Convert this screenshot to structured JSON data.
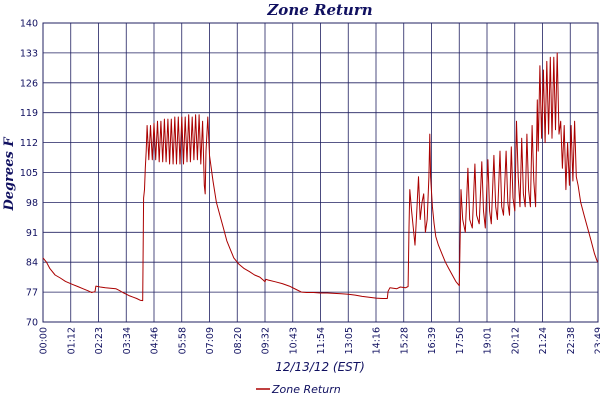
{
  "chart_data": {
    "type": "line",
    "title": "Zone Return",
    "xlabel": "12/13/12 (EST)",
    "ylabel": "Degrees F",
    "ylim": [
      70,
      140
    ],
    "yticks": [
      70,
      77,
      84,
      91,
      98,
      105,
      112,
      119,
      126,
      133,
      140
    ],
    "xticks": [
      "00:00",
      "01:12",
      "02:23",
      "03:34",
      "04:46",
      "05:58",
      "07:09",
      "08:20",
      "09:32",
      "10:43",
      "11:54",
      "13:05",
      "14:16",
      "15:28",
      "16:39",
      "17:50",
      "19:01",
      "20:12",
      "21:24",
      "22:38",
      "23:49"
    ],
    "grid": true,
    "legend_position": "bottom-center",
    "colors": {
      "series": "#aa0000",
      "grid": "#202060",
      "text": "#101060"
    },
    "series": [
      {
        "name": "Zone Return",
        "x_unit": "hours",
        "points": [
          [
            0.0,
            85.0
          ],
          [
            0.2,
            84.0
          ],
          [
            0.4,
            82.5
          ],
          [
            0.7,
            81.0
          ],
          [
            1.0,
            80.3
          ],
          [
            1.3,
            79.5
          ],
          [
            1.7,
            78.8
          ],
          [
            2.0,
            78.3
          ],
          [
            2.3,
            77.8
          ],
          [
            2.6,
            77.3
          ],
          [
            2.8,
            76.9
          ],
          [
            3.0,
            77.1
          ],
          [
            3.05,
            78.4
          ],
          [
            3.3,
            78.2
          ],
          [
            3.6,
            78.0
          ],
          [
            3.9,
            77.9
          ],
          [
            4.2,
            77.8
          ],
          [
            4.4,
            77.4
          ],
          [
            4.6,
            76.9
          ],
          [
            4.8,
            76.5
          ],
          [
            5.0,
            76.1
          ],
          [
            5.2,
            75.8
          ],
          [
            5.4,
            75.5
          ],
          [
            5.6,
            75.1
          ],
          [
            5.75,
            75.0
          ],
          [
            5.8,
            99.0
          ],
          [
            5.85,
            101.0
          ],
          [
            5.9,
            106.0
          ],
          [
            5.95,
            110.0
          ],
          [
            6.0,
            116.0
          ],
          [
            6.1,
            108.0
          ],
          [
            6.2,
            116.0
          ],
          [
            6.3,
            108.0
          ],
          [
            6.4,
            116.5
          ],
          [
            6.5,
            108.0
          ],
          [
            6.6,
            117.0
          ],
          [
            6.7,
            107.5
          ],
          [
            6.8,
            117.0
          ],
          [
            6.9,
            107.5
          ],
          [
            7.0,
            117.5
          ],
          [
            7.1,
            107.5
          ],
          [
            7.2,
            117.5
          ],
          [
            7.3,
            107.0
          ],
          [
            7.4,
            117.5
          ],
          [
            7.5,
            107.0
          ],
          [
            7.6,
            118.0
          ],
          [
            7.7,
            107.0
          ],
          [
            7.8,
            118.0
          ],
          [
            7.9,
            107.0
          ],
          [
            8.0,
            118.0
          ],
          [
            8.1,
            107.0
          ],
          [
            8.2,
            118.0
          ],
          [
            8.3,
            107.5
          ],
          [
            8.4,
            118.5
          ],
          [
            8.5,
            107.5
          ],
          [
            8.6,
            118.0
          ],
          [
            8.7,
            108.0
          ],
          [
            8.8,
            118.5
          ],
          [
            8.9,
            108.0
          ],
          [
            9.0,
            118.5
          ],
          [
            9.1,
            107.0
          ],
          [
            9.2,
            117.0
          ],
          [
            9.3,
            102.0
          ],
          [
            9.35,
            100.0
          ],
          [
            9.4,
            110.0
          ],
          [
            9.5,
            118.0
          ],
          [
            9.6,
            109.0
          ],
          [
            9.8,
            103.0
          ],
          [
            10.0,
            98.0
          ],
          [
            10.2,
            95.0
          ],
          [
            10.4,
            92.0
          ],
          [
            10.6,
            89.0
          ],
          [
            10.8,
            87.0
          ],
          [
            11.0,
            85.0
          ],
          [
            11.3,
            83.5
          ],
          [
            11.6,
            82.5
          ],
          [
            11.9,
            81.8
          ],
          [
            12.2,
            81.0
          ],
          [
            12.5,
            80.5
          ],
          [
            12.7,
            79.8
          ],
          [
            12.8,
            79.4
          ],
          [
            12.85,
            80.0
          ],
          [
            13.0,
            79.8
          ],
          [
            13.4,
            79.4
          ],
          [
            13.8,
            79.0
          ],
          [
            14.2,
            78.4
          ],
          [
            14.6,
            77.6
          ],
          [
            14.9,
            77.0
          ],
          [
            15.2,
            76.9
          ],
          [
            15.6,
            76.9
          ],
          [
            16.0,
            76.8
          ],
          [
            16.4,
            76.8
          ],
          [
            16.8,
            76.7
          ],
          [
            17.2,
            76.6
          ],
          [
            17.6,
            76.5
          ],
          [
            18.0,
            76.3
          ],
          [
            18.4,
            76.0
          ],
          [
            18.8,
            75.8
          ],
          [
            19.2,
            75.6
          ],
          [
            19.6,
            75.5
          ],
          [
            19.85,
            75.5
          ],
          [
            19.9,
            77.2
          ],
          [
            20.0,
            78.0
          ],
          [
            20.4,
            77.8
          ],
          [
            20.6,
            78.2
          ],
          [
            20.9,
            78.0
          ],
          [
            21.05,
            78.3
          ],
          [
            21.1,
            92.0
          ],
          [
            21.15,
            101.0
          ],
          [
            21.25,
            96.0
          ],
          [
            21.35,
            92.0
          ],
          [
            21.45,
            88.0
          ],
          [
            21.55,
            96.0
          ],
          [
            21.65,
            104.0
          ],
          [
            21.75,
            94.0
          ],
          [
            21.85,
            98.0
          ],
          [
            21.95,
            100.0
          ],
          [
            22.05,
            91.0
          ],
          [
            22.15,
            94.0
          ],
          [
            22.25,
            104.0
          ],
          [
            22.3,
            114.0
          ],
          [
            22.35,
            104.0
          ],
          [
            22.45,
            97.0
          ],
          [
            22.55,
            93.0
          ],
          [
            22.65,
            90.0
          ],
          [
            22.8,
            88.0
          ],
          [
            23.0,
            86.0
          ],
          [
            23.2,
            84.0
          ],
          [
            23.4,
            82.5
          ],
          [
            23.6,
            81.0
          ],
          [
            23.8,
            79.5
          ],
          [
            24.0,
            78.5
          ],
          [
            24.1,
            101.0
          ],
          [
            24.2,
            94.0
          ],
          [
            24.35,
            91.0
          ],
          [
            24.5,
            106.0
          ],
          [
            24.6,
            94.0
          ],
          [
            24.75,
            92.0
          ],
          [
            24.9,
            107.0
          ],
          [
            25.0,
            95.0
          ],
          [
            25.15,
            93.0
          ],
          [
            25.3,
            107.5
          ],
          [
            25.4,
            96.0
          ],
          [
            25.5,
            92.0
          ],
          [
            25.65,
            108.0
          ],
          [
            25.75,
            96.0
          ],
          [
            25.85,
            93.0
          ],
          [
            26.0,
            109.0
          ],
          [
            26.1,
            97.0
          ],
          [
            26.2,
            94.0
          ],
          [
            26.35,
            110.0
          ],
          [
            26.45,
            97.0
          ],
          [
            26.55,
            95.0
          ],
          [
            26.7,
            110.0
          ],
          [
            26.8,
            98.0
          ],
          [
            26.9,
            95.0
          ],
          [
            27.0,
            111.0
          ],
          [
            27.1,
            99.0
          ],
          [
            27.2,
            96.0
          ],
          [
            27.3,
            117.0
          ],
          [
            27.4,
            104.0
          ],
          [
            27.5,
            97.0
          ],
          [
            27.6,
            113.0
          ],
          [
            27.7,
            100.0
          ],
          [
            27.8,
            97.0
          ],
          [
            27.9,
            114.0
          ],
          [
            28.0,
            101.0
          ],
          [
            28.1,
            97.0
          ],
          [
            28.2,
            116.0
          ],
          [
            28.3,
            103.0
          ],
          [
            28.4,
            97.0
          ],
          [
            28.5,
            122.0
          ],
          [
            28.55,
            110.0
          ],
          [
            28.65,
            130.0
          ],
          [
            28.75,
            113.0
          ],
          [
            28.85,
            129.0
          ],
          [
            28.95,
            112.0
          ],
          [
            29.05,
            131.0
          ],
          [
            29.15,
            114.0
          ],
          [
            29.25,
            132.0
          ],
          [
            29.35,
            113.0
          ],
          [
            29.45,
            132.0
          ],
          [
            29.55,
            115.0
          ],
          [
            29.65,
            133.0
          ],
          [
            29.75,
            114.0
          ],
          [
            29.85,
            117.0
          ],
          [
            29.95,
            106.0
          ],
          [
            30.05,
            116.0
          ],
          [
            30.15,
            101.0
          ],
          [
            30.25,
            112.0
          ],
          [
            30.35,
            102.0
          ],
          [
            30.45,
            116.0
          ],
          [
            30.55,
            103.0
          ],
          [
            30.65,
            117.0
          ],
          [
            30.75,
            104.0
          ],
          [
            30.85,
            102.0
          ],
          [
            31.0,
            98.0
          ],
          [
            31.2,
            95.0
          ],
          [
            31.4,
            92.0
          ],
          [
            31.6,
            89.0
          ],
          [
            31.8,
            86.0
          ],
          [
            31.97,
            84.0
          ]
        ]
      }
    ]
  }
}
